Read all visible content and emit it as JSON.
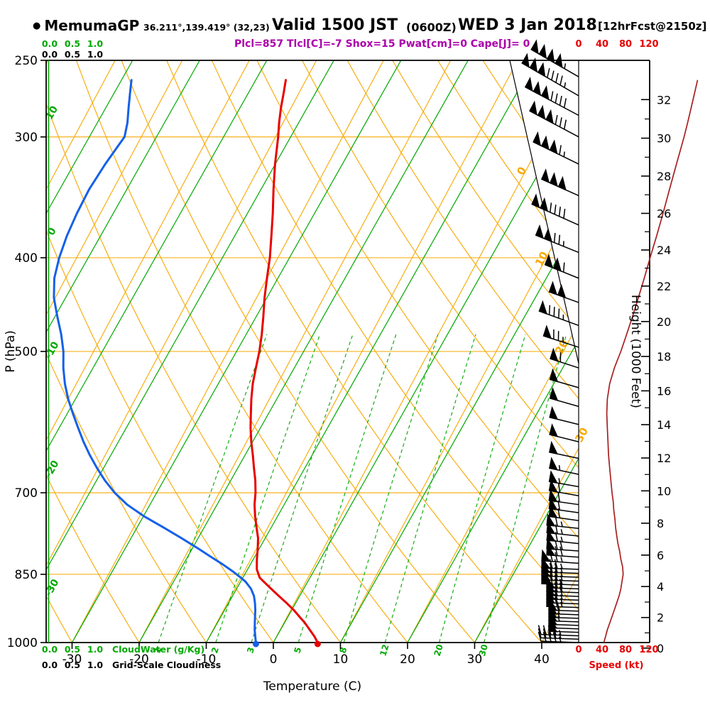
{
  "title": {
    "bullet": "●",
    "station": "MemumaGP",
    "coords": "36.211°,139.419° (32,23)",
    "valid": "Valid 1500 JST",
    "valid_z": "(0600Z)",
    "date": "WED 3 Jan 2018",
    "fcst_tag": "[12hrFcst@2150z]",
    "indices": "Plcl=857 Tlcl[C]=-7 Shox=15 Pwat[cm]=0 Cape[J]= 0"
  },
  "colors": {
    "grid_orange": "#f7a800",
    "green": "#00a800",
    "temp_red": "#e80000",
    "dewpoint_blue": "#1560e8",
    "speed_darkred": "#a82020",
    "indices_purple": "#aa00aa",
    "black": "#000000"
  },
  "axes": {
    "pressure": {
      "title": "P (hPa)",
      "ticks": [
        250,
        300,
        400,
        500,
        700,
        850,
        1000
      ]
    },
    "temperature": {
      "title": "Temperature (C)",
      "ticks": [
        -30,
        -20,
        -10,
        0,
        10,
        20,
        30,
        40
      ]
    },
    "height": {
      "title": "Height (1000 Feet)",
      "major_ticks": [
        0,
        2,
        4,
        6,
        8,
        10,
        12,
        14,
        16,
        18,
        20,
        22,
        24,
        26,
        28,
        30,
        32
      ]
    },
    "speed": {
      "title": "Speed (kt)",
      "ticks": [
        0,
        40,
        80,
        120
      ]
    },
    "cloudwater": {
      "title": "CloudWater (g/Kg)",
      "ticks": [
        "0.0",
        "0.5",
        "1.0"
      ]
    },
    "cloudiness": {
      "title": "Grid-Scale Cloudiness",
      "ticks": [
        "0.0",
        "0.5",
        "1.0"
      ]
    }
  },
  "chart_data": {
    "type": "line",
    "subtype": "skew_t_log_p_sounding",
    "pressure_range_hpa": [
      250,
      1000
    ],
    "isobar_levels": [
      300,
      400,
      500,
      700,
      850
    ],
    "isotherm_range_c": [
      -120,
      40,
      10
    ],
    "dry_adiabat_range_c": [
      -30,
      140,
      10
    ],
    "green_lines_c": [
      -70,
      -60,
      -50,
      -40,
      -30,
      -20,
      -10,
      0,
      10,
      20,
      30
    ],
    "green_line_labels_c": [
      10,
      0,
      -10,
      -20,
      -30
    ],
    "isotherm_labels_c": [
      0,
      10,
      20,
      30
    ],
    "mixing_ratio_lines_gkg": [
      1,
      2,
      3,
      5,
      8,
      12,
      20,
      30
    ],
    "surface": {
      "pressure_hpa": 1000,
      "temperature_c": 6.6,
      "dewpoint_c": -2.6
    },
    "profiles": {
      "temperature_c": [
        [
          1000,
          6.6
        ],
        [
          985,
          5.6
        ],
        [
          970,
          4.4
        ],
        [
          955,
          3.2
        ],
        [
          940,
          1.8
        ],
        [
          925,
          0.4
        ],
        [
          910,
          -1.2
        ],
        [
          895,
          -2.9
        ],
        [
          880,
          -4.6
        ],
        [
          865,
          -6.3
        ],
        [
          857,
          -7.2
        ],
        [
          840,
          -8.3
        ],
        [
          820,
          -9.1
        ],
        [
          800,
          -9.8
        ],
        [
          780,
          -10.6
        ],
        [
          760,
          -11.7
        ],
        [
          740,
          -12.8
        ],
        [
          720,
          -13.8
        ],
        [
          700,
          -14.6
        ],
        [
          680,
          -15.6
        ],
        [
          660,
          -16.8
        ],
        [
          640,
          -18.0
        ],
        [
          620,
          -19.3
        ],
        [
          600,
          -20.5
        ],
        [
          580,
          -21.6
        ],
        [
          560,
          -22.7
        ],
        [
          540,
          -23.7
        ],
        [
          520,
          -24.5
        ],
        [
          500,
          -25.3
        ],
        [
          480,
          -26.3
        ],
        [
          460,
          -27.5
        ],
        [
          440,
          -28.8
        ],
        [
          420,
          -30.0
        ],
        [
          400,
          -31.2
        ],
        [
          380,
          -32.7
        ],
        [
          360,
          -34.3
        ],
        [
          340,
          -36.1
        ],
        [
          320,
          -37.9
        ],
        [
          300,
          -39.6
        ],
        [
          290,
          -40.6
        ],
        [
          280,
          -41.5
        ],
        [
          270,
          -42.3
        ],
        [
          262,
          -43.0
        ]
      ],
      "dewpoint_c": [
        [
          1000,
          -2.6
        ],
        [
          985,
          -3.2
        ],
        [
          970,
          -3.8
        ],
        [
          955,
          -4.3
        ],
        [
          940,
          -4.8
        ],
        [
          925,
          -5.3
        ],
        [
          910,
          -5.9
        ],
        [
          895,
          -6.6
        ],
        [
          880,
          -7.6
        ],
        [
          865,
          -9.0
        ],
        [
          857,
          -10.0
        ],
        [
          845,
          -11.6
        ],
        [
          830,
          -13.8
        ],
        [
          815,
          -16.2
        ],
        [
          800,
          -18.6
        ],
        [
          780,
          -22.0
        ],
        [
          760,
          -25.6
        ],
        [
          740,
          -29.4
        ],
        [
          720,
          -32.8
        ],
        [
          700,
          -35.6
        ],
        [
          680,
          -38.0
        ],
        [
          660,
          -40.2
        ],
        [
          640,
          -42.3
        ],
        [
          620,
          -44.3
        ],
        [
          600,
          -46.2
        ],
        [
          580,
          -48.1
        ],
        [
          560,
          -50.0
        ],
        [
          540,
          -51.7
        ],
        [
          520,
          -53.2
        ],
        [
          500,
          -54.5
        ],
        [
          480,
          -56.2
        ],
        [
          460,
          -58.2
        ],
        [
          440,
          -60.2
        ],
        [
          420,
          -61.7
        ],
        [
          400,
          -62.6
        ],
        [
          380,
          -63.2
        ],
        [
          360,
          -63.5
        ],
        [
          340,
          -63.6
        ],
        [
          320,
          -63.2
        ],
        [
          300,
          -62.5
        ],
        [
          290,
          -63.2
        ],
        [
          280,
          -64.2
        ],
        [
          270,
          -65.2
        ],
        [
          262,
          -66.0
        ]
      ],
      "wind_speed_kt": [
        [
          1000,
          43
        ],
        [
          985,
          46
        ],
        [
          970,
          49
        ],
        [
          955,
          53
        ],
        [
          940,
          57
        ],
        [
          925,
          61
        ],
        [
          910,
          65
        ],
        [
          895,
          69
        ],
        [
          880,
          72
        ],
        [
          865,
          74
        ],
        [
          850,
          76
        ],
        [
          835,
          75
        ],
        [
          820,
          72
        ],
        [
          805,
          70
        ],
        [
          790,
          67
        ],
        [
          775,
          65
        ],
        [
          760,
          63
        ],
        [
          745,
          62
        ],
        [
          730,
          60
        ],
        [
          715,
          59
        ],
        [
          700,
          57
        ],
        [
          680,
          55
        ],
        [
          660,
          53
        ],
        [
          640,
          51
        ],
        [
          620,
          50
        ],
        [
          600,
          49
        ],
        [
          580,
          48
        ],
        [
          560,
          49
        ],
        [
          540,
          53
        ],
        [
          520,
          61
        ],
        [
          500,
          72
        ],
        [
          480,
          82
        ],
        [
          460,
          92
        ],
        [
          440,
          102
        ],
        [
          420,
          112
        ],
        [
          400,
          122
        ],
        [
          380,
          133
        ],
        [
          360,
          144
        ],
        [
          340,
          155
        ],
        [
          320,
          167
        ],
        [
          300,
          180
        ],
        [
          290,
          186
        ],
        [
          280,
          192
        ],
        [
          270,
          198
        ],
        [
          262,
          203
        ]
      ]
    },
    "wind_barbs": [
      [
        1000,
        43,
        272
      ],
      [
        992,
        45,
        272
      ],
      [
        984,
        46,
        272
      ],
      [
        976,
        48,
        272
      ],
      [
        968,
        49,
        272
      ],
      [
        960,
        51,
        272
      ],
      [
        952,
        53,
        272
      ],
      [
        944,
        56,
        272
      ],
      [
        936,
        58,
        272
      ],
      [
        928,
        60,
        272
      ],
      [
        920,
        63,
        272
      ],
      [
        912,
        65,
        272
      ],
      [
        904,
        66,
        272
      ],
      [
        896,
        68,
        272
      ],
      [
        888,
        70,
        272
      ],
      [
        880,
        72,
        272
      ],
      [
        872,
        73,
        272
      ],
      [
        864,
        74,
        272
      ],
      [
        856,
        75,
        272
      ],
      [
        848,
        76,
        272
      ],
      [
        840,
        75,
        272
      ],
      [
        828,
        74,
        274
      ],
      [
        816,
        71,
        274
      ],
      [
        804,
        70,
        274
      ],
      [
        790,
        67,
        276
      ],
      [
        776,
        65,
        276
      ],
      [
        762,
        63,
        276
      ],
      [
        748,
        62,
        278
      ],
      [
        734,
        60,
        278
      ],
      [
        720,
        59,
        278
      ],
      [
        705,
        58,
        280
      ],
      [
        690,
        56,
        280
      ],
      [
        670,
        54,
        282
      ],
      [
        645,
        51,
        282
      ],
      [
        620,
        50,
        284
      ],
      [
        595,
        49,
        284
      ],
      [
        570,
        48,
        286
      ],
      [
        545,
        52,
        286
      ],
      [
        520,
        61,
        288
      ],
      [
        495,
        74,
        288
      ],
      [
        470,
        87,
        290
      ],
      [
        445,
        100,
        290
      ],
      [
        420,
        112,
        292
      ],
      [
        395,
        124,
        292
      ],
      [
        370,
        138,
        294
      ],
      [
        345,
        152,
        294
      ],
      [
        320,
        167,
        296
      ],
      [
        300,
        180,
        298
      ],
      [
        285,
        189,
        298
      ],
      [
        272,
        196,
        300
      ],
      [
        260,
        204,
        300
      ]
    ]
  }
}
